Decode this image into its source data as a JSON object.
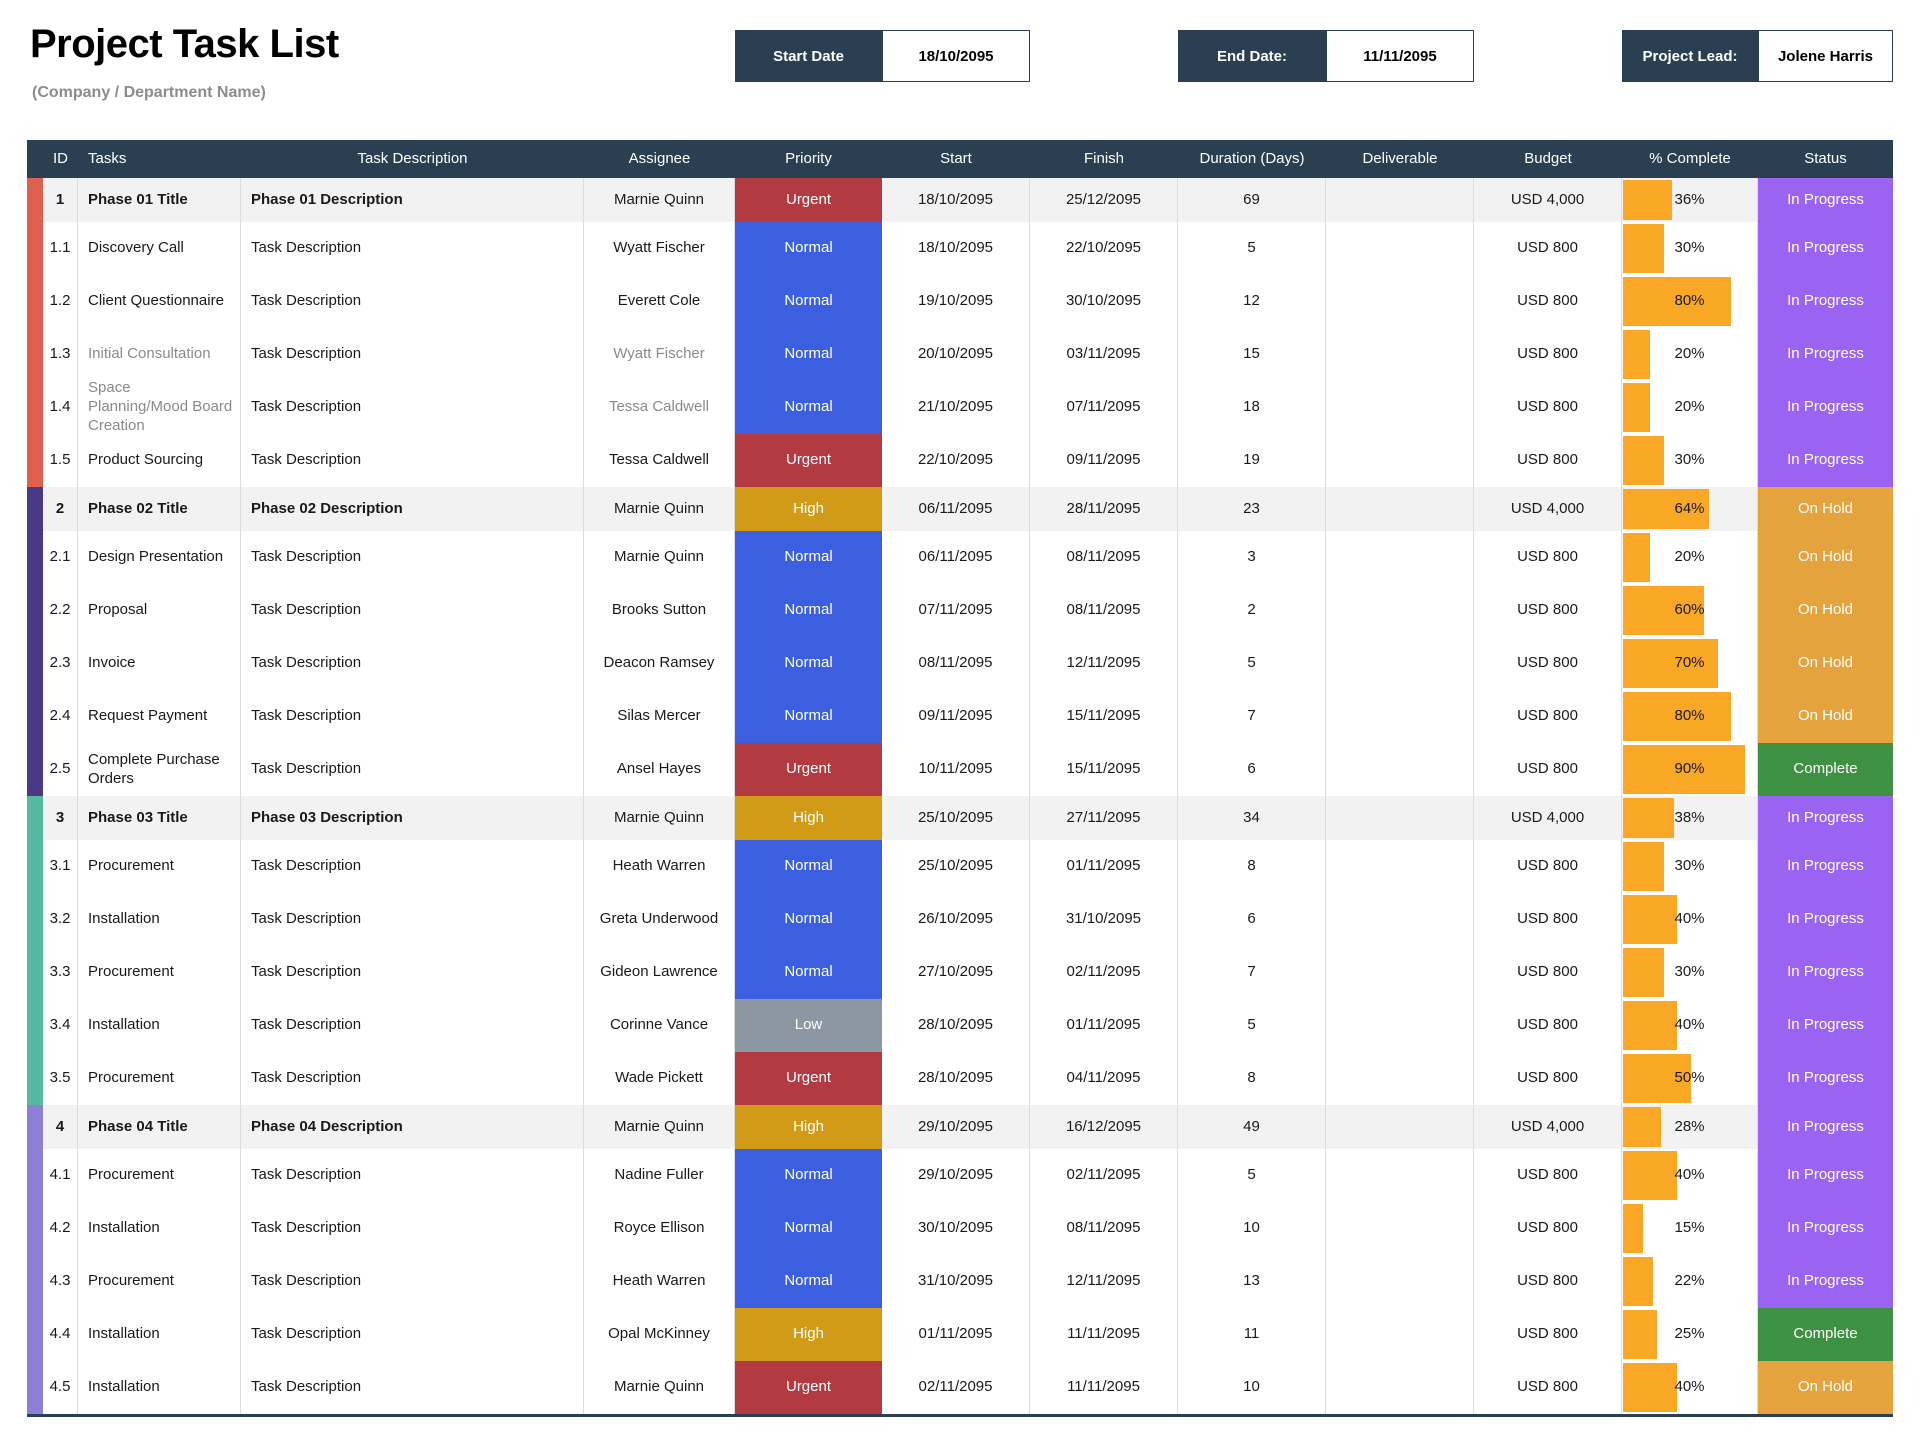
{
  "header": {
    "title": "Project Task List",
    "subtitle": "(Company / Department Name)",
    "fields": [
      {
        "label": "Start Date",
        "value": "18/10/2095"
      },
      {
        "label": "End Date:",
        "value": "11/11/2095"
      },
      {
        "label": "Project Lead:",
        "value": "Jolene Harris"
      }
    ]
  },
  "colors": {
    "header_bar": "#2A4052",
    "progress_bar": "#F9A825",
    "phase_bar": {
      "1": "#E0604F",
      "2": "#4A3A86",
      "3": "#56B89F",
      "4": "#8B7FD6"
    },
    "priority": {
      "Urgent": "#B23B42",
      "High": "#D29B17",
      "Normal": "#3C5FE0",
      "Low": "#8D97A2"
    },
    "status": {
      "In Progress": "#9A63F2",
      "On Hold": "#E5A33D",
      "Complete": "#3E9142"
    }
  },
  "table": {
    "columns": [
      "ID",
      "Tasks",
      "Task Description",
      "Assignee",
      "Priority",
      "Start",
      "Finish",
      "Duration (Days)",
      "Deliverable",
      "Budget",
      "% Complete",
      "Status"
    ],
    "rows": [
      {
        "type": "phase",
        "phase": 1,
        "id": "1",
        "task": "Phase 01 Title",
        "desc": "Phase 01 Description",
        "assignee": "Marnie Quinn",
        "priority": "Urgent",
        "start": "18/10/2095",
        "finish": "25/12/2095",
        "duration": "69",
        "deliverable": "",
        "budget": "USD 4,000",
        "pct": 36,
        "status": "In Progress",
        "muted": false
      },
      {
        "type": "task",
        "phase": 1,
        "id": "1.1",
        "task": "Discovery Call",
        "desc": "Task Description",
        "assignee": "Wyatt Fischer",
        "priority": "Normal",
        "start": "18/10/2095",
        "finish": "22/10/2095",
        "duration": "5",
        "deliverable": "",
        "budget": "USD 800",
        "pct": 30,
        "status": "In Progress",
        "muted": false
      },
      {
        "type": "task",
        "phase": 1,
        "id": "1.2",
        "task": "Client Questionnaire",
        "desc": "Task Description",
        "assignee": "Everett Cole",
        "priority": "Normal",
        "start": "19/10/2095",
        "finish": "30/10/2095",
        "duration": "12",
        "deliverable": "",
        "budget": "USD 800",
        "pct": 80,
        "status": "In Progress",
        "muted": false
      },
      {
        "type": "task",
        "phase": 1,
        "id": "1.3",
        "task": "Initial Consultation",
        "desc": "Task Description",
        "assignee": "Wyatt Fischer",
        "priority": "Normal",
        "start": "20/10/2095",
        "finish": "03/11/2095",
        "duration": "15",
        "deliverable": "",
        "budget": "USD 800",
        "pct": 20,
        "status": "In Progress",
        "muted": true
      },
      {
        "type": "task",
        "phase": 1,
        "id": "1.4",
        "task": "Space Planning/Mood Board Creation",
        "desc": "Task Description",
        "assignee": "Tessa Caldwell",
        "priority": "Normal",
        "start": "21/10/2095",
        "finish": "07/11/2095",
        "duration": "18",
        "deliverable": "",
        "budget": "USD 800",
        "pct": 20,
        "status": "In Progress",
        "muted": true
      },
      {
        "type": "task",
        "phase": 1,
        "id": "1.5",
        "task": "Product Sourcing",
        "desc": "Task Description",
        "assignee": "Tessa Caldwell",
        "priority": "Urgent",
        "start": "22/10/2095",
        "finish": "09/11/2095",
        "duration": "19",
        "deliverable": "",
        "budget": "USD 800",
        "pct": 30,
        "status": "In Progress",
        "muted": false
      },
      {
        "type": "phase",
        "phase": 2,
        "id": "2",
        "task": "Phase 02 Title",
        "desc": "Phase 02 Description",
        "assignee": "Marnie Quinn",
        "priority": "High",
        "start": "06/11/2095",
        "finish": "28/11/2095",
        "duration": "23",
        "deliverable": "",
        "budget": "USD 4,000",
        "pct": 64,
        "status": "On Hold",
        "muted": false
      },
      {
        "type": "task",
        "phase": 2,
        "id": "2.1",
        "task": "Design Presentation",
        "desc": "Task Description",
        "assignee": "Marnie Quinn",
        "priority": "Normal",
        "start": "06/11/2095",
        "finish": "08/11/2095",
        "duration": "3",
        "deliverable": "",
        "budget": "USD 800",
        "pct": 20,
        "status": "On Hold",
        "muted": false
      },
      {
        "type": "task",
        "phase": 2,
        "id": "2.2",
        "task": "Proposal",
        "desc": "Task Description",
        "assignee": "Brooks Sutton",
        "priority": "Normal",
        "start": "07/11/2095",
        "finish": "08/11/2095",
        "duration": "2",
        "deliverable": "",
        "budget": "USD 800",
        "pct": 60,
        "status": "On Hold",
        "muted": false
      },
      {
        "type": "task",
        "phase": 2,
        "id": "2.3",
        "task": "Invoice",
        "desc": "Task Description",
        "assignee": "Deacon Ramsey",
        "priority": "Normal",
        "start": "08/11/2095",
        "finish": "12/11/2095",
        "duration": "5",
        "deliverable": "",
        "budget": "USD 800",
        "pct": 70,
        "status": "On Hold",
        "muted": false
      },
      {
        "type": "task",
        "phase": 2,
        "id": "2.4",
        "task": "Request Payment",
        "desc": "Task Description",
        "assignee": "Silas Mercer",
        "priority": "Normal",
        "start": "09/11/2095",
        "finish": "15/11/2095",
        "duration": "7",
        "deliverable": "",
        "budget": "USD 800",
        "pct": 80,
        "status": "On Hold",
        "muted": false
      },
      {
        "type": "task",
        "phase": 2,
        "id": "2.5",
        "task": "Complete Purchase Orders",
        "desc": "Task Description",
        "assignee": "Ansel Hayes",
        "priority": "Urgent",
        "start": "10/11/2095",
        "finish": "15/11/2095",
        "duration": "6",
        "deliverable": "",
        "budget": "USD 800",
        "pct": 90,
        "status": "Complete",
        "muted": false
      },
      {
        "type": "phase",
        "phase": 3,
        "id": "3",
        "task": "Phase 03 Title",
        "desc": "Phase 03 Description",
        "assignee": "Marnie Quinn",
        "priority": "High",
        "start": "25/10/2095",
        "finish": "27/11/2095",
        "duration": "34",
        "deliverable": "",
        "budget": "USD 4,000",
        "pct": 38,
        "status": "In Progress",
        "muted": false
      },
      {
        "type": "task",
        "phase": 3,
        "id": "3.1",
        "task": "Procurement",
        "desc": "Task Description",
        "assignee": "Heath Warren",
        "priority": "Normal",
        "start": "25/10/2095",
        "finish": "01/11/2095",
        "duration": "8",
        "deliverable": "",
        "budget": "USD 800",
        "pct": 30,
        "status": "In Progress",
        "muted": false
      },
      {
        "type": "task",
        "phase": 3,
        "id": "3.2",
        "task": "Installation",
        "desc": "Task Description",
        "assignee": "Greta Underwood",
        "priority": "Normal",
        "start": "26/10/2095",
        "finish": "31/10/2095",
        "duration": "6",
        "deliverable": "",
        "budget": "USD 800",
        "pct": 40,
        "status": "In Progress",
        "muted": false
      },
      {
        "type": "task",
        "phase": 3,
        "id": "3.3",
        "task": "Procurement",
        "desc": "Task Description",
        "assignee": "Gideon Lawrence",
        "priority": "Normal",
        "start": "27/10/2095",
        "finish": "02/11/2095",
        "duration": "7",
        "deliverable": "",
        "budget": "USD 800",
        "pct": 30,
        "status": "In Progress",
        "muted": false
      },
      {
        "type": "task",
        "phase": 3,
        "id": "3.4",
        "task": "Installation",
        "desc": "Task Description",
        "assignee": "Corinne Vance",
        "priority": "Low",
        "start": "28/10/2095",
        "finish": "01/11/2095",
        "duration": "5",
        "deliverable": "",
        "budget": "USD 800",
        "pct": 40,
        "status": "In Progress",
        "muted": false
      },
      {
        "type": "task",
        "phase": 3,
        "id": "3.5",
        "task": "Procurement",
        "desc": "Task Description",
        "assignee": "Wade Pickett",
        "priority": "Urgent",
        "start": "28/10/2095",
        "finish": "04/11/2095",
        "duration": "8",
        "deliverable": "",
        "budget": "USD 800",
        "pct": 50,
        "status": "In Progress",
        "muted": false
      },
      {
        "type": "phase",
        "phase": 4,
        "id": "4",
        "task": "Phase 04 Title",
        "desc": "Phase 04 Description",
        "assignee": "Marnie Quinn",
        "priority": "High",
        "start": "29/10/2095",
        "finish": "16/12/2095",
        "duration": "49",
        "deliverable": "",
        "budget": "USD 4,000",
        "pct": 28,
        "status": "In Progress",
        "muted": false
      },
      {
        "type": "task",
        "phase": 4,
        "id": "4.1",
        "task": "Procurement",
        "desc": "Task Description",
        "assignee": "Nadine Fuller",
        "priority": "Normal",
        "start": "29/10/2095",
        "finish": "02/11/2095",
        "duration": "5",
        "deliverable": "",
        "budget": "USD 800",
        "pct": 40,
        "status": "In Progress",
        "muted": false
      },
      {
        "type": "task",
        "phase": 4,
        "id": "4.2",
        "task": "Installation",
        "desc": "Task Description",
        "assignee": "Royce Ellison",
        "priority": "Normal",
        "start": "30/10/2095",
        "finish": "08/11/2095",
        "duration": "10",
        "deliverable": "",
        "budget": "USD 800",
        "pct": 15,
        "status": "In Progress",
        "muted": false
      },
      {
        "type": "task",
        "phase": 4,
        "id": "4.3",
        "task": "Procurement",
        "desc": "Task Description",
        "assignee": "Heath Warren",
        "priority": "Normal",
        "start": "31/10/2095",
        "finish": "12/11/2095",
        "duration": "13",
        "deliverable": "",
        "budget": "USD 800",
        "pct": 22,
        "status": "In Progress",
        "muted": false
      },
      {
        "type": "task",
        "phase": 4,
        "id": "4.4",
        "task": "Installation",
        "desc": "Task Description",
        "assignee": "Opal McKinney",
        "priority": "High",
        "start": "01/11/2095",
        "finish": "11/11/2095",
        "duration": "11",
        "deliverable": "",
        "budget": "USD 800",
        "pct": 25,
        "status": "Complete",
        "muted": false
      },
      {
        "type": "task",
        "phase": 4,
        "id": "4.5",
        "task": "Installation",
        "desc": "Task Description",
        "assignee": "Marnie Quinn",
        "priority": "Urgent",
        "start": "02/11/2095",
        "finish": "11/11/2095",
        "duration": "10",
        "deliverable": "",
        "budget": "USD 800",
        "pct": 40,
        "status": "On Hold",
        "muted": false
      }
    ]
  }
}
